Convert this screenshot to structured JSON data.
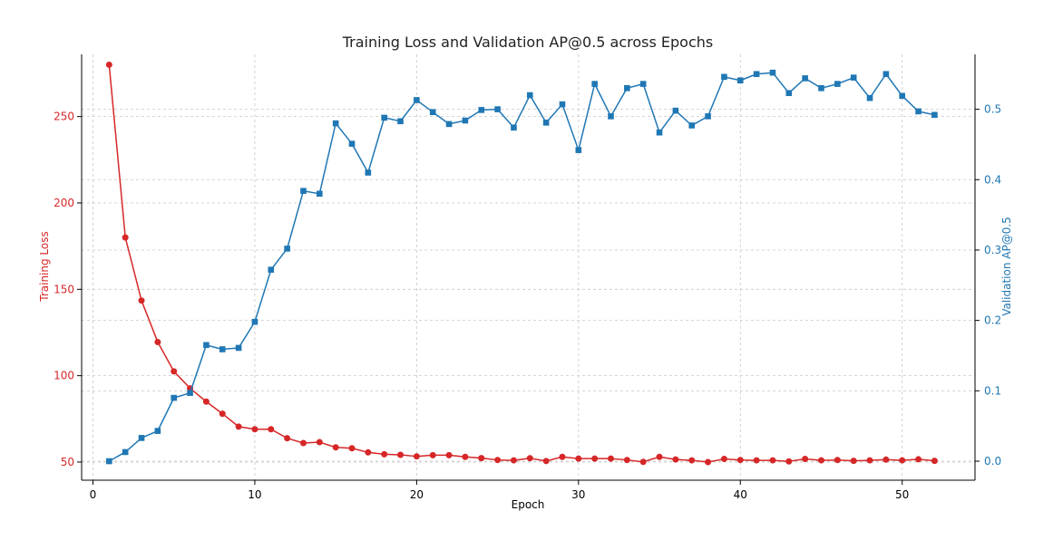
{
  "chart_data": {
    "type": "line",
    "title": "Training Loss and Validation AP@0.5 across Epochs",
    "xlabel": "Epoch",
    "xlim": [
      -0.7,
      54.5
    ],
    "xticks": [
      0,
      10,
      20,
      30,
      40,
      50
    ],
    "grid": true,
    "y_left": {
      "label": "Training Loss",
      "color": "#d62728",
      "lim": [
        39.5,
        286
      ],
      "ticks": [
        50,
        100,
        150,
        200,
        250
      ]
    },
    "y_right": {
      "label": "Validation AP@0.5",
      "color": "#1f77b4",
      "lim": [
        -0.027,
        0.578
      ],
      "ticks": [
        "0.0",
        "0.1",
        "0.2",
        "0.3",
        "0.4",
        "0.5"
      ]
    },
    "x": [
      1,
      2,
      3,
      4,
      5,
      6,
      7,
      8,
      9,
      10,
      11,
      12,
      13,
      14,
      15,
      16,
      17,
      18,
      19,
      20,
      21,
      22,
      23,
      24,
      25,
      26,
      27,
      28,
      29,
      30,
      31,
      32,
      33,
      34,
      35,
      36,
      37,
      38,
      39,
      40,
      41,
      42,
      43,
      44,
      45,
      46,
      47,
      48,
      49,
      50,
      51,
      52
    ],
    "series": [
      {
        "name": "Training Loss",
        "axis": "left",
        "marker": "circle",
        "color": "#d62728",
        "values": [
          280,
          180,
          143.5,
          119.5,
          102.5,
          92.7,
          85,
          78,
          70.5,
          69,
          69,
          63.8,
          61,
          61.5,
          58.5,
          58,
          55.6,
          54.5,
          54.2,
          53.3,
          54,
          54,
          53,
          52.3,
          51.2,
          51,
          52.2,
          50.6,
          53,
          52,
          52,
          52,
          51.2,
          50.1,
          53,
          51.5,
          51,
          50,
          51.8,
          51.2,
          51,
          51,
          50.4,
          51.8,
          51,
          51.2,
          50.7,
          51,
          51.4,
          51,
          51.6,
          50.7
        ]
      },
      {
        "name": "Validation AP@0.5",
        "axis": "right",
        "marker": "square",
        "color": "#1f77b4",
        "values": [
          0.0,
          0.013,
          0.033,
          0.043,
          0.09,
          0.097,
          0.165,
          0.159,
          0.161,
          0.198,
          0.272,
          0.302,
          0.384,
          0.38,
          0.48,
          0.451,
          0.41,
          0.488,
          0.483,
          0.513,
          0.496,
          0.479,
          0.484,
          0.499,
          0.5,
          0.474,
          0.52,
          0.481,
          0.507,
          0.442,
          0.536,
          0.49,
          0.53,
          0.536,
          0.467,
          0.498,
          0.477,
          0.49,
          0.546,
          0.541,
          0.55,
          0.552,
          0.523,
          0.544,
          0.53,
          0.536,
          0.545,
          0.516,
          0.55,
          0.519,
          0.497,
          0.492
        ]
      }
    ]
  }
}
